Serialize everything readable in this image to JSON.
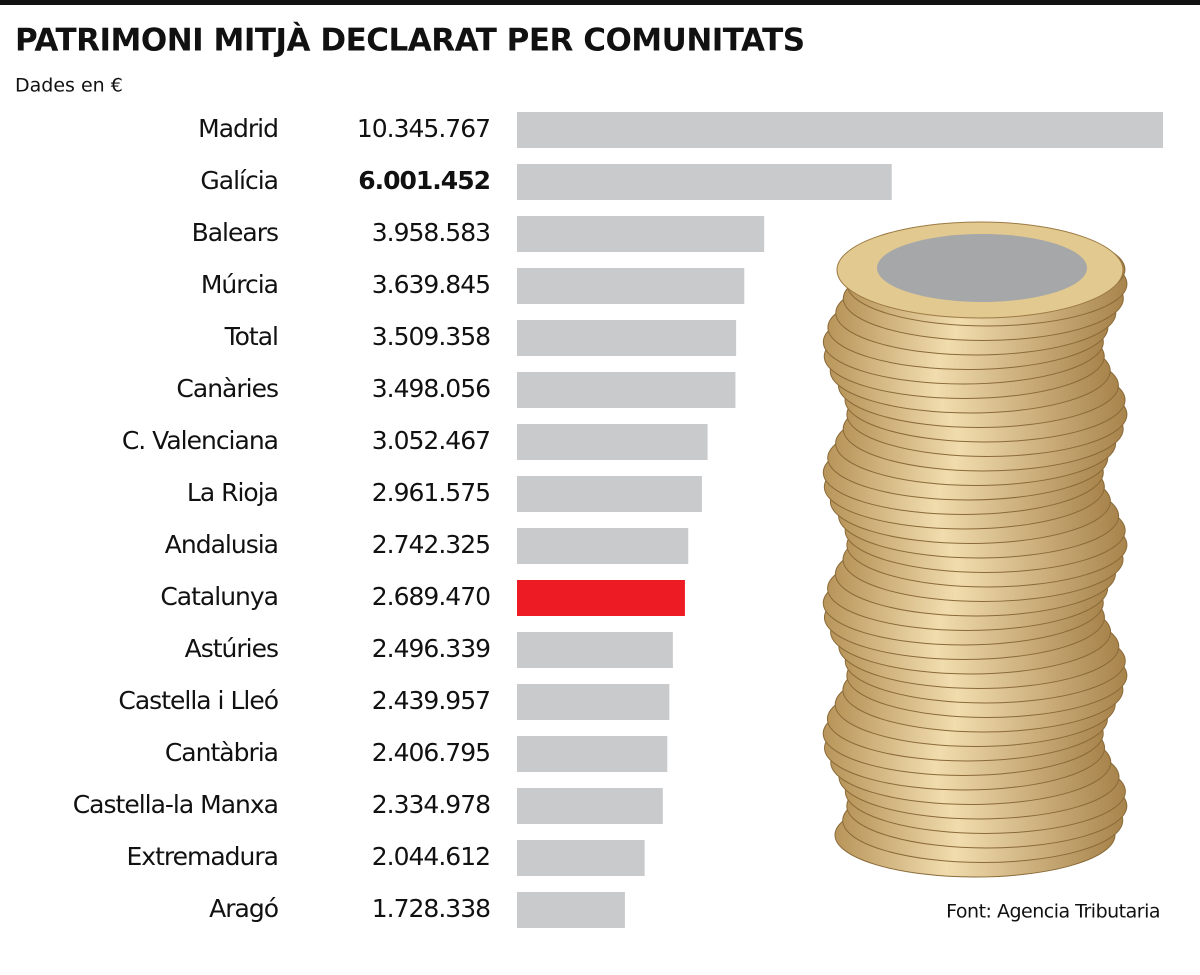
{
  "chart_data": {
    "type": "bar",
    "orientation": "horizontal",
    "title": "PATRIMONI MITJÀ DECLARAT PER COMUNITATS",
    "subtitle": "Dades en €",
    "source": "Font: Agencia Tributaria",
    "categories": [
      "Madrid",
      "Galícia",
      "Balears",
      "Múrcia",
      "Total",
      "Canàries",
      "C. Valenciana",
      "La Rioja",
      "Andalusia",
      "Catalunya",
      "Astúries",
      "Castella i Lleó",
      "Cantàbria",
      "Castella-la Manxa",
      "Extremadura",
      "Aragó"
    ],
    "values": [
      10345767,
      6001452,
      3958583,
      3639845,
      3509358,
      3498056,
      3052467,
      2961575,
      2742325,
      2689470,
      2496339,
      2439957,
      2406795,
      2334978,
      2044612,
      1728338
    ],
    "value_labels": [
      "10.345.767",
      "6.001.452",
      "3.958.583",
      "3.639.845",
      "3.509.358",
      "3.498.056",
      "3.052.467",
      "2.961.575",
      "2.742.325",
      "2.689.470",
      "2.496.339",
      "2.439.957",
      "2.406.795",
      "2.334.978",
      "2.044.612",
      "1.728.338"
    ],
    "value_label_bold": [
      false,
      true,
      false,
      false,
      false,
      false,
      false,
      false,
      false,
      false,
      false,
      false,
      false,
      false,
      false,
      false
    ],
    "colors": [
      "#c9cacc",
      "#c9cacc",
      "#c9cacc",
      "#c9cacc",
      "#c9cacc",
      "#c9cacc",
      "#c9cacc",
      "#c9cacc",
      "#c9cacc",
      "#ed1c24",
      "#c9cacc",
      "#c9cacc",
      "#c9cacc",
      "#c9cacc",
      "#c9cacc",
      "#c9cacc"
    ]
  }
}
